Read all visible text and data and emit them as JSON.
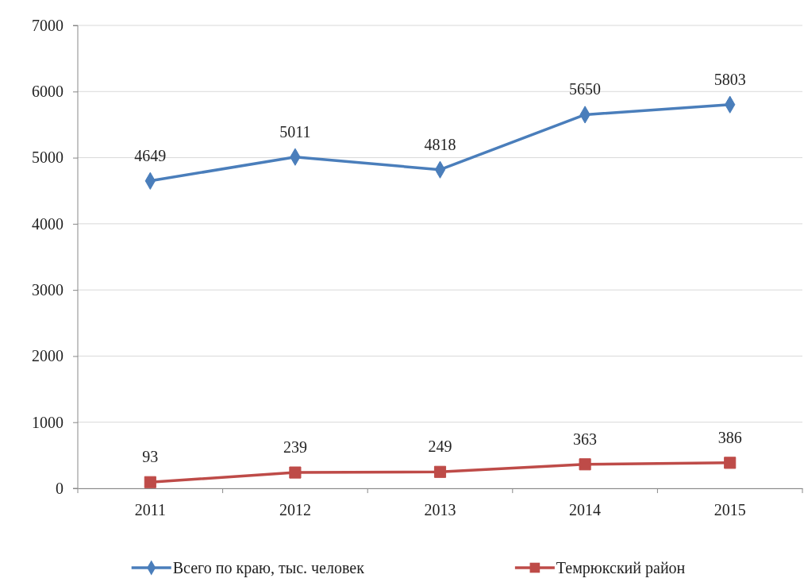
{
  "chart_data": {
    "type": "line",
    "categories": [
      "2011",
      "2012",
      "2013",
      "2014",
      "2015"
    ],
    "series": [
      {
        "name": "Всего по краю, тыс. человек",
        "color": "#4a7ebb",
        "values": [
          4649,
          5011,
          4818,
          5650,
          5803
        ],
        "marker": "diamond"
      },
      {
        "name": "Темрюкский район",
        "color": "#be4b48",
        "values": [
          93,
          239,
          249,
          363,
          386
        ],
        "marker": "square"
      }
    ],
    "ylim": [
      0,
      7000
    ],
    "yticks": [
      0,
      1000,
      2000,
      3000,
      4000,
      5000,
      6000,
      7000
    ],
    "grid": "y",
    "legend": "bottom",
    "data_labels": true,
    "line_style": "solid"
  }
}
